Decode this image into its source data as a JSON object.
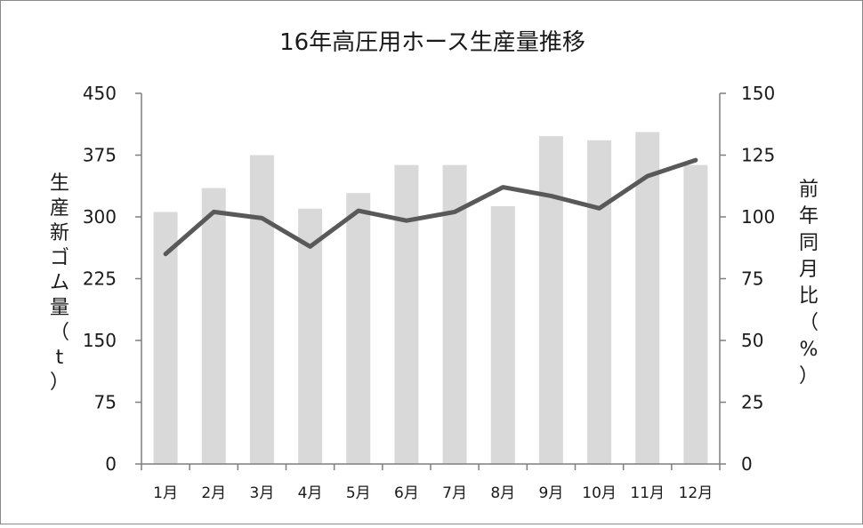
{
  "chart_data": {
    "type": "bar",
    "title": "16年高圧用ホース生産量推移",
    "categories": [
      "1月",
      "2月",
      "3月",
      "4月",
      "5月",
      "6月",
      "7月",
      "8月",
      "9月",
      "10月",
      "11月",
      "12月"
    ],
    "series": [
      {
        "type": "bar",
        "axis": "left",
        "color": "#d9d9d9",
        "values": [
          306,
          335,
          375,
          310,
          329,
          363,
          363,
          313,
          398,
          393,
          403,
          363
        ]
      },
      {
        "type": "line",
        "axis": "right",
        "color": "#595959",
        "values": [
          85,
          102,
          99.5,
          88,
          102.5,
          98.5,
          102,
          112,
          108.5,
          103.5,
          116.5,
          123
        ]
      }
    ],
    "y_left": {
      "label_chars": [
        "生",
        "産",
        "新",
        "ゴ",
        "ム",
        "量",
        "（",
        "t",
        "）"
      ],
      "ticks": [
        "450",
        "375",
        "300",
        "225",
        "150",
        "75",
        "0"
      ],
      "ylim": [
        0,
        450
      ]
    },
    "y_right": {
      "label_chars": [
        "前",
        "年",
        "同",
        "月",
        "比",
        "（",
        "%",
        "）"
      ],
      "ticks": [
        "150",
        "125",
        "100",
        "75",
        "50",
        "25",
        "0"
      ],
      "ylim": [
        0,
        150
      ]
    },
    "grid": false
  }
}
